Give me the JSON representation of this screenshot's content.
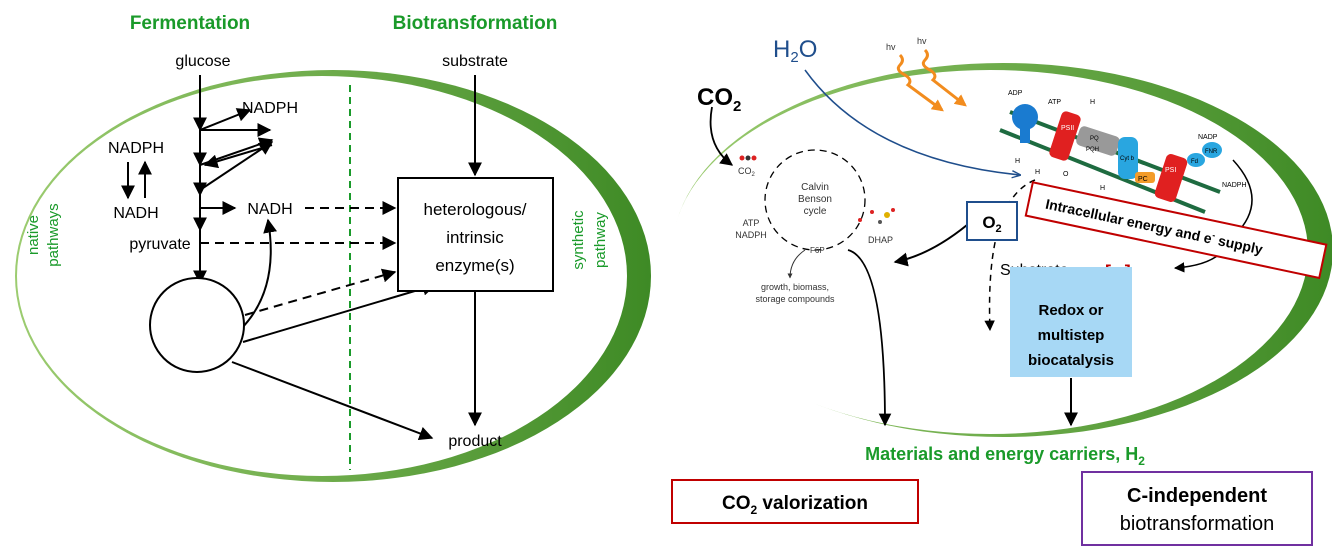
{
  "left": {
    "title_fermentation": "Fermentation",
    "title_biotransformation": "Biotransformation",
    "glucose": "glucose",
    "substrate": "substrate",
    "nadph_top": "NADPH",
    "nadph_left": "NADPH",
    "nadh_left": "NADH",
    "nadh_mid": "NADH",
    "pyruvate": "pyruvate",
    "enzyme_box": [
      "heterologous/",
      "intrinsic",
      "enzyme(s)"
    ],
    "product": "product",
    "native_pathways": [
      "native",
      "pathways"
    ],
    "synthetic_pathway": [
      "synthetic",
      "pathway"
    ]
  },
  "right": {
    "h2o": "H",
    "h2o_sub": "2",
    "h2o_o": "O",
    "co2": "CO",
    "co2_sub": "2",
    "hv": "hv",
    "calvin": [
      "Calvin",
      "Benson",
      "cycle"
    ],
    "co2_small": "CO",
    "co2_small_sub": "2",
    "atp_nadph": [
      "ATP",
      "NADPH"
    ],
    "dhap": "DHAP",
    "f6p": "F6P",
    "growth": [
      "growth, biomass,",
      "storage compounds"
    ],
    "o2": "O",
    "o2_sub": "2",
    "intracellular": "Intracellular  energy and e",
    "intracellular_sup": "-",
    "intracellular_end": " supply",
    "substrate": "Substrate",
    "electron": "[e",
    "electron_sup": "-",
    "electron_end": "]",
    "redox": [
      "Redox or",
      "multistep",
      "biocatalysis"
    ],
    "materials": "Materials and energy carriers, H",
    "materials_sub": "2",
    "co2_valorization": "CO",
    "co2_valorization_sub": "2",
    "co2_valorization_end": " valorization",
    "c_independent": "C-independent",
    "biotransformation": "biotransformation",
    "membrane": {
      "adp": "ADP",
      "atp": "ATP",
      "h1": "H",
      "h2": "H",
      "h3": "H",
      "psii": "PSII",
      "pq": "PQ",
      "pqh2": "PQH",
      "cyt": "Cyt b",
      "pc": "PC",
      "psi": "PSI",
      "fd": "Fd",
      "fnr": "FNR",
      "nadp": "NADP",
      "nadph": "NADPH",
      "h2o_small": "H",
      "o2_h": "O",
      "h2o_small2": "O"
    }
  },
  "colors": {
    "green": "#1a9a2a",
    "red": "#c00000",
    "purple": "#7030a0",
    "blue": "#1f4e8c",
    "orange": "#f28c1e",
    "lightblue": "#a7d8f5"
  }
}
